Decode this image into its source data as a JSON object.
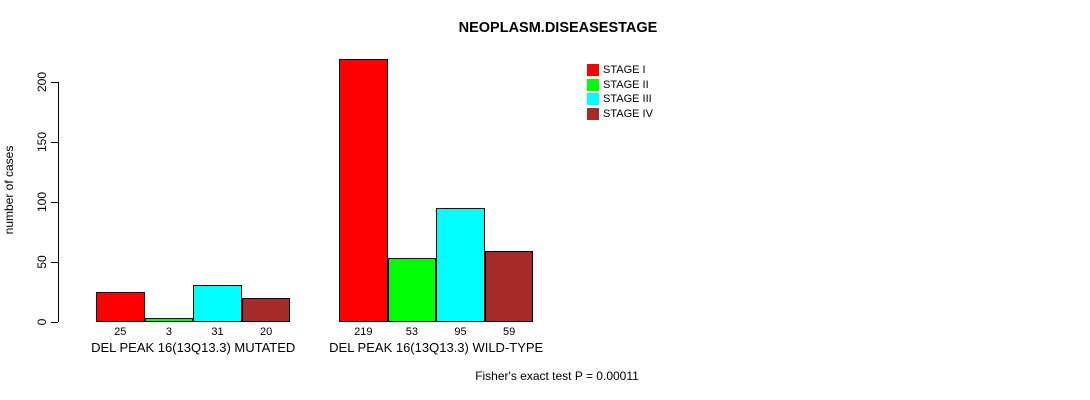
{
  "chart_data": {
    "type": "bar",
    "title": "NEOPLASM.DISEASESTAGE",
    "ylabel": "number of cases",
    "xlabel": "",
    "categories": [
      "DEL PEAK 16(13Q13.3) MUTATED",
      "DEL PEAK 16(13Q13.3) WILD-TYPE"
    ],
    "series": [
      {
        "name": "STAGE I",
        "color": "#FF0000",
        "values": [
          25,
          219
        ]
      },
      {
        "name": "STAGE II",
        "color": "#00FF00",
        "values": [
          3,
          53
        ]
      },
      {
        "name": "STAGE III",
        "color": "#00FFFF",
        "values": [
          31,
          95
        ]
      },
      {
        "name": "STAGE IV",
        "color": "#A52A2A",
        "values": [
          20,
          59
        ]
      }
    ],
    "bar_value_labels": [
      [
        "25",
        "3",
        "31",
        "20"
      ],
      [
        "219",
        "53",
        "95",
        "59"
      ]
    ],
    "yticks": [
      0,
      50,
      100,
      150,
      200
    ],
    "ylim": [
      0,
      230
    ],
    "grid": false,
    "legend_position": "top-right",
    "annotation": "Fisher's exact test P = 0.00011"
  }
}
